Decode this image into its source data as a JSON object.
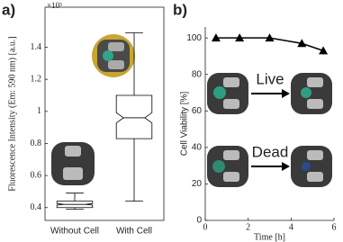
{
  "chart_data": [
    {
      "type": "box",
      "panel_label": "a)",
      "ylabel": "Fluorescence Intensity (Em: 590 nm) [a.u.]",
      "axis_multiplier": "×10³",
      "categories": [
        "Without Cell",
        "With Cell"
      ],
      "min": [
        0.39,
        0.44
      ],
      "q1": [
        0.4,
        0.83
      ],
      "median": [
        0.42,
        0.96
      ],
      "q3": [
        0.44,
        1.1
      ],
      "max": [
        0.49,
        1.49
      ],
      "color": "#000000",
      "notched": true,
      "ylim": [
        0.32,
        1.65
      ],
      "yticks": [
        0.4,
        0.6,
        0.8,
        1,
        1.2,
        1.4
      ],
      "grid": false
    },
    {
      "type": "line",
      "panel_label": "b)",
      "xlabel": "Time [h]",
      "ylabel": "Cell Viability [%]",
      "x": [
        0.5,
        1.6,
        3,
        4.5,
        5.5
      ],
      "values": [
        100,
        100,
        100,
        97,
        93
      ],
      "color": "#000000",
      "marker": "triangle",
      "xlim": [
        0,
        6
      ],
      "xticks": [
        0,
        2,
        4,
        6
      ],
      "ylim": [
        0,
        106
      ],
      "yticks": [
        0,
        20,
        40,
        60,
        80,
        100
      ],
      "grid": false,
      "annotations": [
        "Live",
        "Dead"
      ]
    }
  ]
}
